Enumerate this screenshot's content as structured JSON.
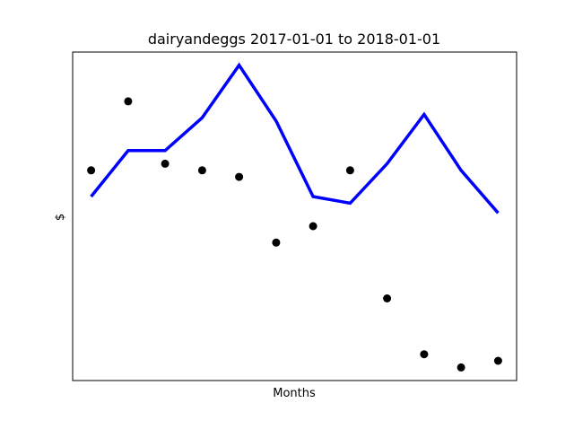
{
  "chart_data": {
    "type": "line",
    "title": "dairyandeggs 2017-01-01 to 2018-01-01",
    "xlabel": "Months",
    "ylabel": "$",
    "x": [
      0,
      1,
      2,
      3,
      4,
      5,
      6,
      7,
      8,
      9,
      10,
      11
    ],
    "xlim": [
      -0.5,
      11.5
    ],
    "ylim": [
      0,
      100
    ],
    "grid": false,
    "ticks_visible": false,
    "series": [
      {
        "kind": "line",
        "color": "#0000ff",
        "values": [
          56,
          70,
          70,
          80,
          96,
          79,
          56,
          54,
          66,
          81,
          64,
          51
        ]
      },
      {
        "kind": "scatter",
        "color": "#000000",
        "values": [
          64,
          85,
          66,
          64,
          62,
          42,
          47,
          64,
          25,
          8,
          4,
          6
        ]
      }
    ]
  }
}
